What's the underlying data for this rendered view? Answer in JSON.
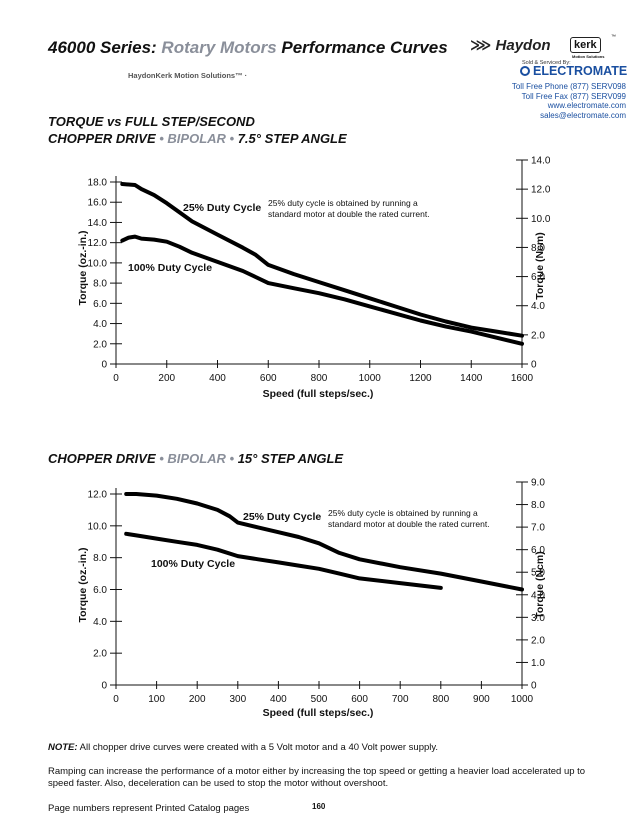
{
  "header": {
    "title_part1": "46000 Series: ",
    "title_part2": "Rotary Motors",
    "title_part3": " Performance Curves",
    "tagline": "HaydonKerk Motion Solutions™ ·",
    "brand": {
      "haydon": "Haydon",
      "kerk": "kerk",
      "tm": "™",
      "sub": "Motion Solutions"
    },
    "sold_by": "Sold & Serviced By:",
    "distributor": "ELECTROMATE",
    "contact": [
      "Toll Free Phone (877) SERV098",
      "Toll Free Fax (877) SERV099",
      "www.electromate.com",
      "sales@electromate.com"
    ]
  },
  "charts": [
    {
      "heading_line1": "TORQUE vs FULL STEP/SECOND",
      "heading_line2_a": "CHOPPER DRIVE ",
      "heading_line2_b": " • BIPOLAR •",
      "heading_line2_c": " 7.5° STEP ANGLE",
      "annotation_25": "25% Duty Cycle",
      "annotation_100": "100% Duty Cycle",
      "note_lines": [
        "25% duty cycle is obtained by running a",
        "standard motor at double the rated current."
      ]
    },
    {
      "heading_a": "CHOPPER DRIVE",
      "heading_b": " • BIPOLAR •",
      "heading_c": " 15° STEP ANGLE",
      "annotation_25": "25% Duty Cycle",
      "annotation_100": "100% Duty Cycle",
      "note_lines": [
        "25% duty cycle is obtained by running a",
        "standard motor at double the rated current."
      ]
    }
  ],
  "chart_data": [
    {
      "type": "line",
      "xlabel": "Speed (full steps/sec.)",
      "ylabel": "Torque (oz.-in.)",
      "y2label": "Torque (Ncm)",
      "xlim": [
        0,
        1600
      ],
      "ylim": [
        0,
        18
      ],
      "y2lim": [
        0,
        14
      ],
      "xticks": [
        "0",
        "200",
        "400",
        "600",
        "800",
        "1000",
        "1200",
        "1400",
        "1600"
      ],
      "yticks": [
        "0",
        "2.0",
        "4.0",
        "6.0",
        "8.0",
        "10.0",
        "12.0",
        "14.0",
        "16.0",
        "18.0"
      ],
      "y2ticks": [
        "0",
        "2.0",
        "4.0",
        "6.0",
        "8.0",
        "10.0",
        "12.0",
        "14.0"
      ],
      "series": [
        {
          "name": "25% Duty Cycle",
          "x": [
            25,
            75,
            100,
            150,
            200,
            250,
            300,
            400,
            500,
            550,
            600,
            700,
            800,
            900,
            1000,
            1100,
            1200,
            1300,
            1400,
            1500,
            1600
          ],
          "y": [
            17.8,
            17.7,
            17.3,
            16.7,
            15.9,
            15.0,
            14.1,
            12.8,
            11.5,
            10.8,
            9.8,
            8.9,
            8.1,
            7.3,
            6.5,
            5.7,
            4.9,
            4.2,
            3.6,
            3.2,
            2.8
          ]
        },
        {
          "name": "100% Duty Cycle",
          "x": [
            25,
            50,
            75,
            100,
            150,
            200,
            250,
            300,
            400,
            500,
            550,
            600,
            700,
            800,
            900,
            1000,
            1100,
            1200,
            1300,
            1400,
            1500,
            1600
          ],
          "y": [
            12.2,
            12.5,
            12.6,
            12.4,
            12.3,
            12.1,
            11.6,
            11.0,
            10.1,
            9.2,
            8.6,
            8.0,
            7.5,
            7.0,
            6.4,
            5.7,
            5.0,
            4.3,
            3.7,
            3.2,
            2.6,
            2.0
          ]
        }
      ]
    },
    {
      "type": "line",
      "xlabel": "Speed (full steps/sec.)",
      "ylabel": "Torque (oz.-in.)",
      "y2label": "Torque (Ncm)",
      "xlim": [
        0,
        1000
      ],
      "ylim": [
        0,
        12.6
      ],
      "y2lim": [
        0,
        9
      ],
      "xticks": [
        "0",
        "100",
        "200",
        "300",
        "400",
        "500",
        "600",
        "700",
        "800",
        "900",
        "1000"
      ],
      "yticks": [
        "0",
        "2.0",
        "4.0",
        "6.0",
        "8.0",
        "10.0",
        "12.0"
      ],
      "y2ticks": [
        "0",
        "1.0",
        "2.0",
        "3.0",
        "4.0",
        "5.0",
        "6.0",
        "7.0",
        "8.0",
        "9.0"
      ],
      "series": [
        {
          "name": "25% Duty Cycle",
          "x": [
            25,
            50,
            100,
            150,
            200,
            250,
            280,
            300,
            350,
            400,
            450,
            500,
            550,
            600,
            700,
            800,
            900,
            1000
          ],
          "y": [
            12.0,
            12.0,
            11.9,
            11.7,
            11.4,
            11.0,
            10.6,
            10.2,
            9.9,
            9.6,
            9.3,
            8.9,
            8.3,
            7.9,
            7.4,
            7.0,
            6.5,
            6.0
          ]
        },
        {
          "name": "100% Duty Cycle",
          "x": [
            25,
            50,
            100,
            150,
            200,
            250,
            300,
            350,
            400,
            450,
            500,
            550,
            600,
            700,
            800
          ],
          "y": [
            9.5,
            9.4,
            9.2,
            9.0,
            8.8,
            8.5,
            8.1,
            7.9,
            7.7,
            7.5,
            7.3,
            7.0,
            6.7,
            6.4,
            6.1
          ]
        }
      ]
    }
  ],
  "notes": {
    "note_label": "NOTE:",
    "note_text": " All chopper drive curves were created with a 5 Volt motor and a 40 Volt power supply.",
    "ramping": "Ramping can increase the performance of a motor either by increasing the top speed or getting a heavier load accelerated up to speed faster. Also, deceleration can be used to stop the motor without overshoot."
  },
  "footer": {
    "text": "Page numbers represent Printed Catalog pages",
    "page": "160"
  }
}
